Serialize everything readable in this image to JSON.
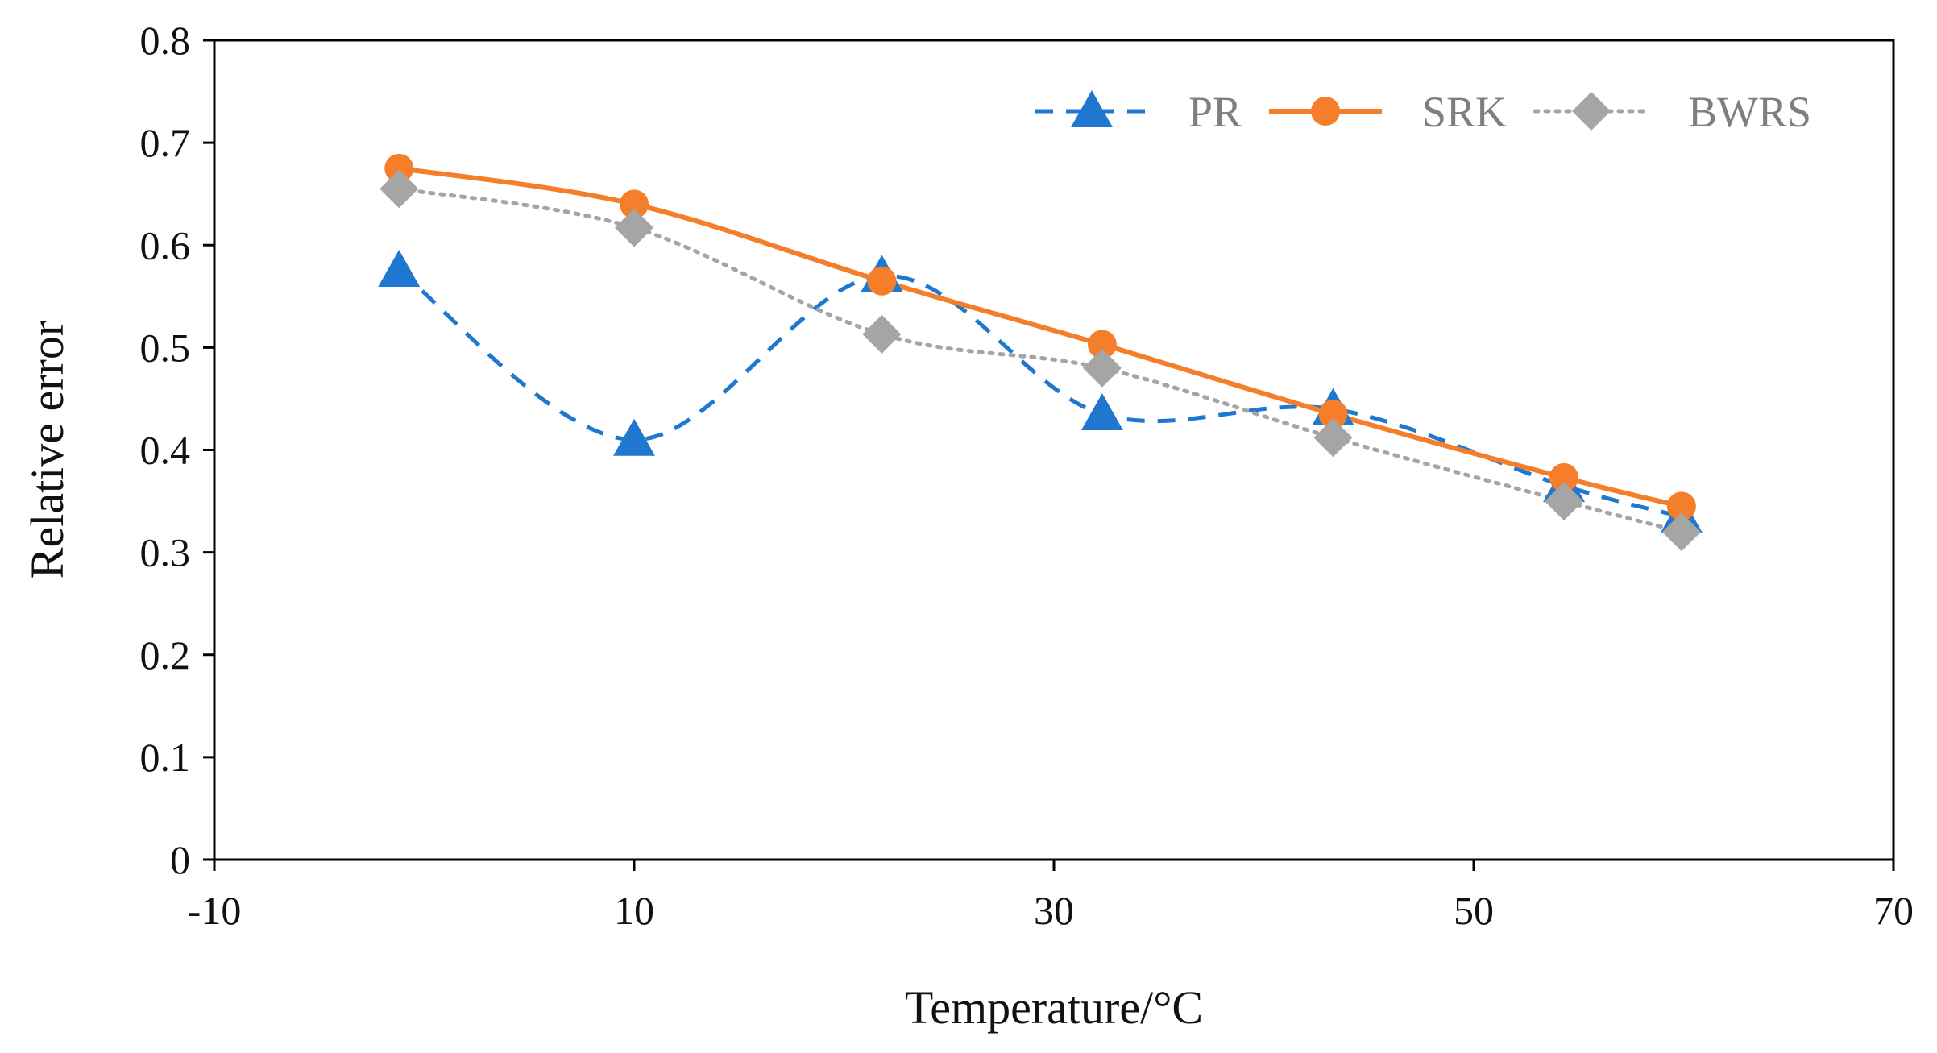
{
  "chart_data": {
    "type": "line",
    "title": "",
    "xlabel": "Temperature/°C",
    "ylabel": "Relative error",
    "xlim": [
      -10,
      70
    ],
    "ylim": [
      0,
      0.8
    ],
    "xticks": [
      "-10",
      "10",
      "30",
      "50",
      "70"
    ],
    "yticks": [
      "0",
      "0.1",
      "0.2",
      "0.3",
      "0.4",
      "0.5",
      "0.6",
      "0.7",
      "0.8"
    ],
    "grid": false,
    "legend_position": "top-right",
    "series": [
      {
        "name": "PR",
        "color": "#1f77d0",
        "style": "dashed",
        "marker": "triangle",
        "x": [
          -1.2,
          10.0,
          21.8,
          32.3,
          43.3,
          54.3,
          59.9
        ],
        "y": [
          0.575,
          0.41,
          0.57,
          0.435,
          0.44,
          0.365,
          0.335
        ]
      },
      {
        "name": "SRK",
        "color": "#f47e2a",
        "style": "solid",
        "marker": "circle",
        "x": [
          -1.2,
          10.0,
          21.8,
          32.3,
          43.3,
          54.3,
          59.9
        ],
        "y": [
          0.675,
          0.64,
          0.565,
          0.503,
          0.435,
          0.373,
          0.345
        ]
      },
      {
        "name": "BWRS",
        "color": "#a5a5a5",
        "style": "dotted",
        "marker": "diamond",
        "x": [
          -1.2,
          10.0,
          21.8,
          32.3,
          43.3,
          54.3,
          59.9
        ],
        "y": [
          0.655,
          0.617,
          0.513,
          0.48,
          0.412,
          0.35,
          0.32
        ]
      }
    ]
  }
}
